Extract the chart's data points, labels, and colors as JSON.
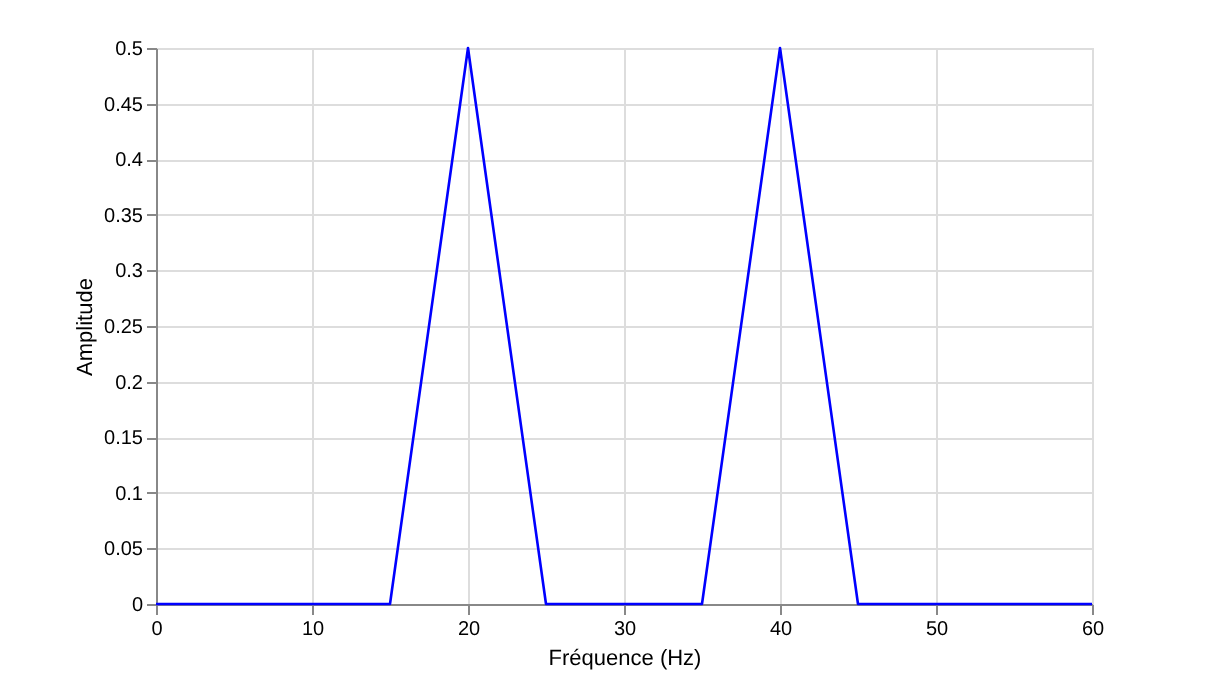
{
  "chart_data": {
    "type": "line",
    "xlabel": "Fréquence (Hz)",
    "ylabel": "Amplitude",
    "x": [
      0,
      15,
      20,
      25,
      35,
      40,
      45,
      60
    ],
    "series": [
      {
        "color": "#0000ff",
        "values": [
          0,
          0,
          0.5,
          0,
          0,
          0.5,
          0,
          0
        ]
      }
    ],
    "xlim": [
      0,
      60
    ],
    "xticks": [
      0,
      10,
      20,
      30,
      40,
      50,
      60
    ],
    "ylim": [
      0,
      0.5
    ],
    "yticks": [
      0,
      0.05,
      0.1,
      0.15,
      0.2,
      0.25,
      0.3,
      0.35,
      0.4,
      0.45,
      0.5
    ],
    "grid": true,
    "marker": "none",
    "line_style": "solid"
  }
}
